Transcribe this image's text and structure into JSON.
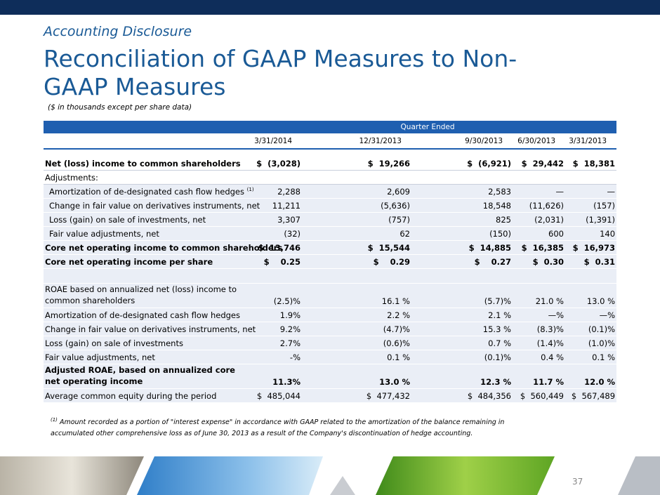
{
  "header": {
    "kicker": "Accounting Disclosure",
    "title": "Reconciliation of GAAP Measures to Non-GAAP Measures",
    "subtitle": "($ in thousands except per share data)"
  },
  "table": {
    "group_header": "Quarter Ended",
    "columns": [
      "3/31/2014",
      "12/31/2013",
      "9/30/2013",
      "6/30/2013",
      "3/31/2013"
    ],
    "rows": [
      {
        "label": "Net (loss) income to common shareholders",
        "values": [
          "$  (3,028)",
          "$  19,266",
          "$  (6,921)",
          "$  29,442",
          "$  18,381"
        ]
      },
      {
        "label": "Adjustments:",
        "values": []
      },
      {
        "label": "Amortization of de-designated cash flow hedges",
        "note": "(1)",
        "values": [
          "2,288",
          "2,609",
          "2,583",
          "—",
          "—"
        ]
      },
      {
        "label": "Change in fair value on derivatives instruments, net",
        "values": [
          "11,211",
          "(5,636)",
          "18,548",
          "(11,626)",
          "(157)"
        ]
      },
      {
        "label": "Loss (gain) on sale of investments, net",
        "values": [
          "3,307",
          "(757)",
          "825",
          "(2,031)",
          "(1,391)"
        ]
      },
      {
        "label": "Fair value adjustments, net",
        "values": [
          "(32)",
          "62",
          "(150)",
          "600",
          "140"
        ]
      },
      {
        "label": "Core net operating income to common shareholders",
        "values": [
          "$  13,746",
          "$  15,544",
          "$  14,885",
          "$  16,385",
          "$  16,973"
        ]
      },
      {
        "label": "Core net operating income per share",
        "values": [
          "$    0.25",
          "$    0.29",
          "$    0.27",
          "$  0.30",
          "$  0.31"
        ]
      },
      {
        "label": "ROAE based on annualized net (loss) income to common shareholders",
        "values": [
          "(2.5)%",
          "16.1 %",
          "(5.7)%",
          "21.0 %",
          "13.0 %"
        ]
      },
      {
        "label": "Amortization of de-designated cash flow hedges",
        "values": [
          "1.9%",
          "2.2 %",
          "2.1 %",
          "—%",
          "—%"
        ]
      },
      {
        "label": "Change in fair value on derivatives instruments, net",
        "values": [
          "9.2%",
          "(4.7)%",
          "15.3 %",
          "(8.3)%",
          "(0.1)%"
        ]
      },
      {
        "label": "Loss (gain) on sale of investments",
        "values": [
          "2.7%",
          "(0.6)%",
          "0.7 %",
          "(1.4)%",
          "(1.0)%"
        ]
      },
      {
        "label": "Fair value adjustments, net",
        "values": [
          "-%",
          "0.1 %",
          "(0.1)%",
          "0.4 %",
          "0.1 %"
        ]
      },
      {
        "label": "Adjusted ROAE, based on annualized core net operating income",
        "values": [
          "11.3%",
          "13.0 %",
          "12.3 %",
          "11.7 %",
          "12.0 %"
        ]
      },
      {
        "label": "Average common equity during the period",
        "values": [
          "$  485,044",
          "$  477,432",
          "$  484,356",
          "$  560,449",
          "$  567,489"
        ]
      }
    ]
  },
  "footnote": {
    "marker": "(1)",
    "text": "Amount recorded as a portion of \"interest expense\" in accordance with GAAP related to the amortization of the balance remaining in accumulated other comprehensive loss as of June 30, 2013 as a result of the Company's discontinuation of hedge accounting."
  },
  "page_number": "37"
}
